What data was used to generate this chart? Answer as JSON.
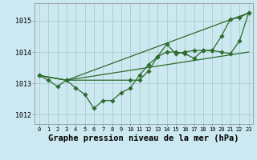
{
  "bg_color": "#cce8f0",
  "grid_color": "#aacccc",
  "line_color": "#2d6b2d",
  "xlabel": "Graphe pression niveau de la mer (hPa)",
  "xlabel_fontsize": 7.5,
  "yticks": [
    1012,
    1013,
    1014,
    1015
  ],
  "xticks": [
    0,
    1,
    2,
    3,
    4,
    5,
    6,
    7,
    8,
    9,
    10,
    11,
    12,
    13,
    14,
    15,
    16,
    17,
    18,
    19,
    20,
    21,
    22,
    23
  ],
  "xlim": [
    -0.5,
    23.5
  ],
  "ylim": [
    1011.7,
    1015.55
  ],
  "line1_x": [
    0,
    1,
    2,
    3,
    4,
    5,
    6,
    7,
    8,
    9,
    10,
    11,
    12,
    13,
    14,
    15,
    16,
    17,
    18,
    19,
    20,
    21,
    22,
    23
  ],
  "line1_y": [
    1013.25,
    1013.1,
    1012.9,
    1013.1,
    1012.85,
    1012.65,
    1012.2,
    1012.45,
    1012.45,
    1012.7,
    1012.85,
    1013.25,
    1013.6,
    1013.85,
    1014.25,
    1013.95,
    1014.0,
    1014.05,
    1014.05,
    1014.05,
    1014.5,
    1015.05,
    1015.1,
    1015.25
  ],
  "line2_x": [
    0,
    3,
    10,
    11,
    12,
    13,
    14,
    15,
    16,
    17,
    18,
    19,
    20,
    21,
    22,
    23
  ],
  "line2_y": [
    1013.25,
    1013.1,
    1013.1,
    1013.1,
    1013.4,
    1013.85,
    1014.0,
    1014.0,
    1013.95,
    1013.8,
    1014.05,
    1014.05,
    1014.0,
    1013.95,
    1014.35,
    1015.25
  ],
  "line3_x": [
    0,
    3,
    23
  ],
  "line3_y": [
    1013.25,
    1013.1,
    1015.25
  ],
  "line4_x": [
    0,
    3,
    23
  ],
  "line4_y": [
    1013.25,
    1013.1,
    1015.25
  ]
}
